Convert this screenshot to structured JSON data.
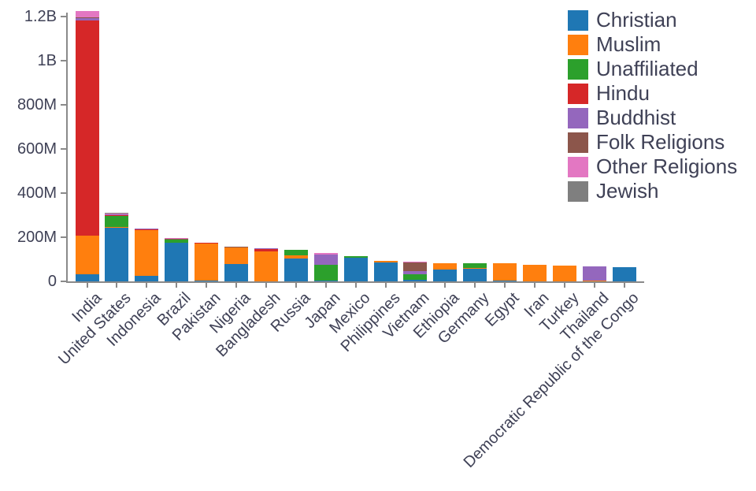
{
  "chart_data": {
    "type": "bar",
    "stacked": true,
    "title": "",
    "xlabel": "",
    "ylabel": "",
    "unit": "persons",
    "grid": false,
    "legend_position": "top-right",
    "ylim_millions": [
      0,
      1260
    ],
    "y_ticks": [
      {
        "label": "0",
        "value": 0
      },
      {
        "label": "200M",
        "value": 200
      },
      {
        "label": "400M",
        "value": 400
      },
      {
        "label": "600M",
        "value": 600
      },
      {
        "label": "800M",
        "value": 800
      },
      {
        "label": "1B",
        "value": 1000
      },
      {
        "label": "1.2B",
        "value": 1200
      }
    ],
    "categories": [
      "India",
      "United States",
      "Indonesia",
      "Brazil",
      "Pakistan",
      "Nigeria",
      "Bangladesh",
      "Russia",
      "Japan",
      "Mexico",
      "Philippines",
      "Vietnam",
      "Ethiopia",
      "Germany",
      "Egypt",
      "Iran",
      "Turkey",
      "Thailand",
      "Democratic Republic of the Congo"
    ],
    "series": [
      {
        "name": "Christian",
        "color": "#1f77b4",
        "values_millions": [
          31.1,
          243.1,
          23.7,
          173.3,
          2.8,
          78.1,
          0.3,
          104.8,
          2.0,
          107.8,
          86.4,
          7.3,
          52.6,
          56.5,
          4.1,
          0.3,
          0.3,
          0.6,
          63.2
        ]
      },
      {
        "name": "Muslim",
        "color": "#ff7f0e",
        "values_millions": [
          176.2,
          2.8,
          209.1,
          0.1,
          167.4,
          76.3,
          134.4,
          14.3,
          0.2,
          0.1,
          5.1,
          0.2,
          28.7,
          4.8,
          76.9,
          73.6,
          71.3,
          3.9,
          1.0
        ]
      },
      {
        "name": "Unaffiliated",
        "color": "#2ca02c",
        "values_millions": [
          0.9,
          51.0,
          0.2,
          15.4,
          0,
          0.7,
          0,
          23.2,
          72.1,
          5.3,
          0.1,
          26.0,
          0.4,
          20.4,
          0.2,
          0.1,
          0.9,
          0.2,
          0.4
        ]
      },
      {
        "name": "Hindu",
        "color": "#d62728",
        "values_millions": [
          973.8,
          1.8,
          4.1,
          0,
          3.3,
          0,
          13.5,
          0,
          0,
          0,
          0,
          0.1,
          0,
          0.1,
          0,
          0,
          0,
          0.1,
          0
        ]
      },
      {
        "name": "Buddhist",
        "color": "#9467bd",
        "values_millions": [
          9.3,
          3.6,
          1.7,
          0.2,
          0,
          0,
          0.7,
          0.1,
          45.8,
          0,
          0,
          14.4,
          0,
          0.3,
          0,
          0,
          0,
          64.4,
          0
        ]
      },
      {
        "name": "Folk Religions",
        "color": "#8c564b",
        "values_millions": [
          5.8,
          1.9,
          0.7,
          5.5,
          0,
          2.2,
          0,
          0.2,
          0.5,
          0.2,
          1.4,
          39.8,
          2.2,
          0,
          0,
          0,
          0,
          0.1,
          1.2
        ]
      },
      {
        "name": "Other Religions",
        "color": "#e377c2",
        "values_millions": [
          27.6,
          1.9,
          0.3,
          0.6,
          0.1,
          1.1,
          0,
          0.2,
          7.2,
          0.1,
          0.2,
          0.4,
          0,
          0.1,
          0,
          0.1,
          0.2,
          0,
          0.1
        ]
      },
      {
        "name": "Jewish",
        "color": "#7f7f7f",
        "values_millions": [
          0,
          5.7,
          0,
          0.1,
          0,
          0,
          0,
          0.3,
          0,
          0,
          0,
          0,
          0,
          0.2,
          0,
          0,
          0,
          0,
          0
        ]
      }
    ]
  },
  "colors": {
    "text": "#3f4156",
    "axis": "#8a8a8a",
    "background": "#ffffff"
  }
}
